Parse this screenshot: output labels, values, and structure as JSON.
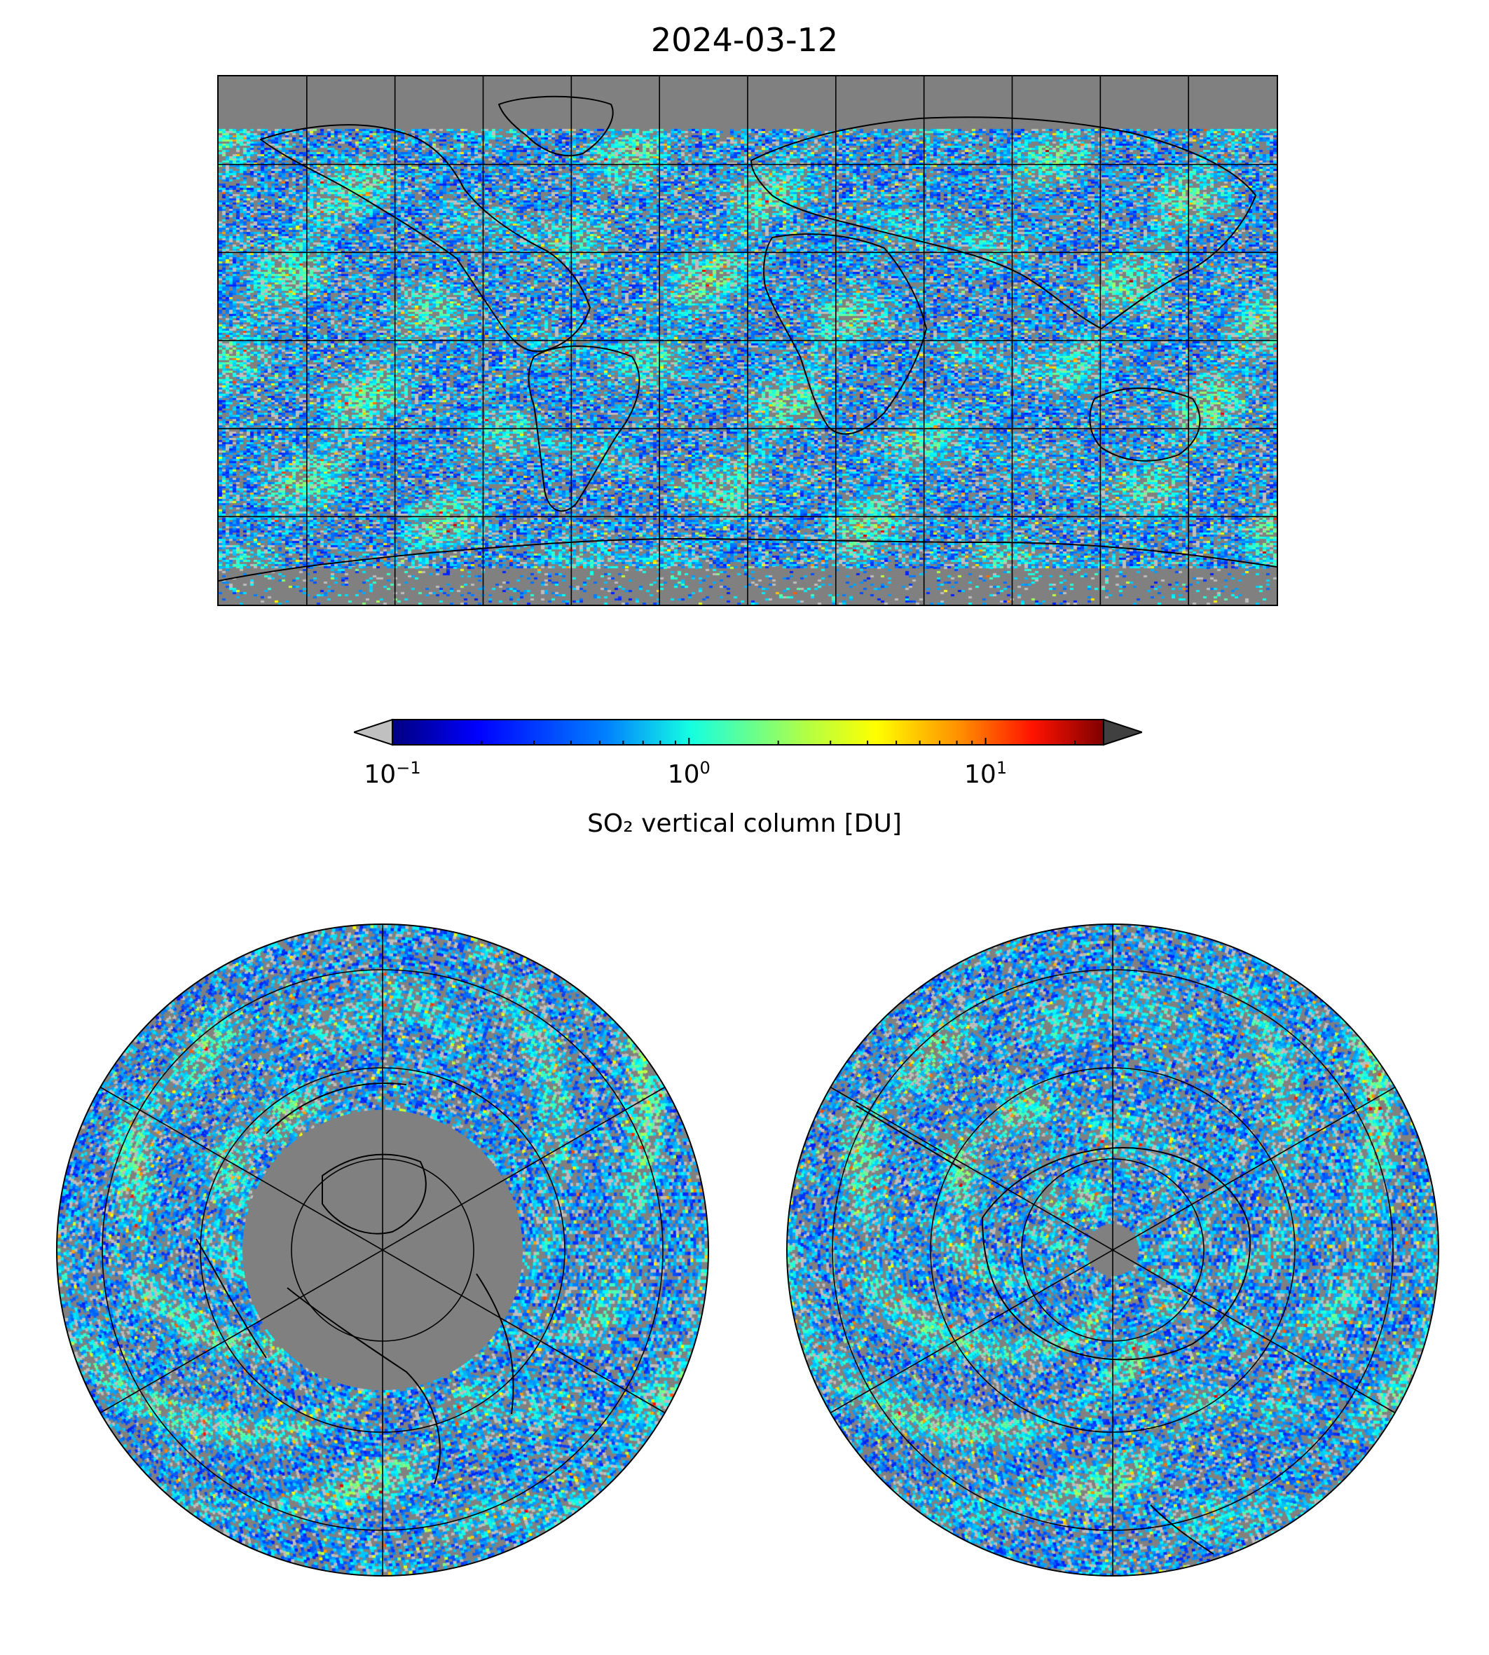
{
  "title": "2024-03-12",
  "colorbar": {
    "label": "SO₂ vertical column [DU]",
    "ticks": [
      {
        "base": "10",
        "exp": "−1",
        "value": 0.1
      },
      {
        "base": "10",
        "exp": "0",
        "value": 1
      },
      {
        "base": "10",
        "exp": "1",
        "value": 10
      }
    ],
    "scale": "log",
    "vmin": 0.1,
    "vmax": 25,
    "colormap": "jet",
    "under_color": "#c0c0c0",
    "over_color": "#404040"
  },
  "maps": {
    "world": {
      "projection": "plate-carree",
      "no_data_color": "#808080",
      "gridlines": true
    },
    "north_polar": {
      "projection": "north-polar-stereographic",
      "no_data_color": "#808080",
      "gridlines": true
    },
    "south_polar": {
      "projection": "south-polar-stereographic",
      "no_data_color": "#808080",
      "gridlines": true
    }
  }
}
